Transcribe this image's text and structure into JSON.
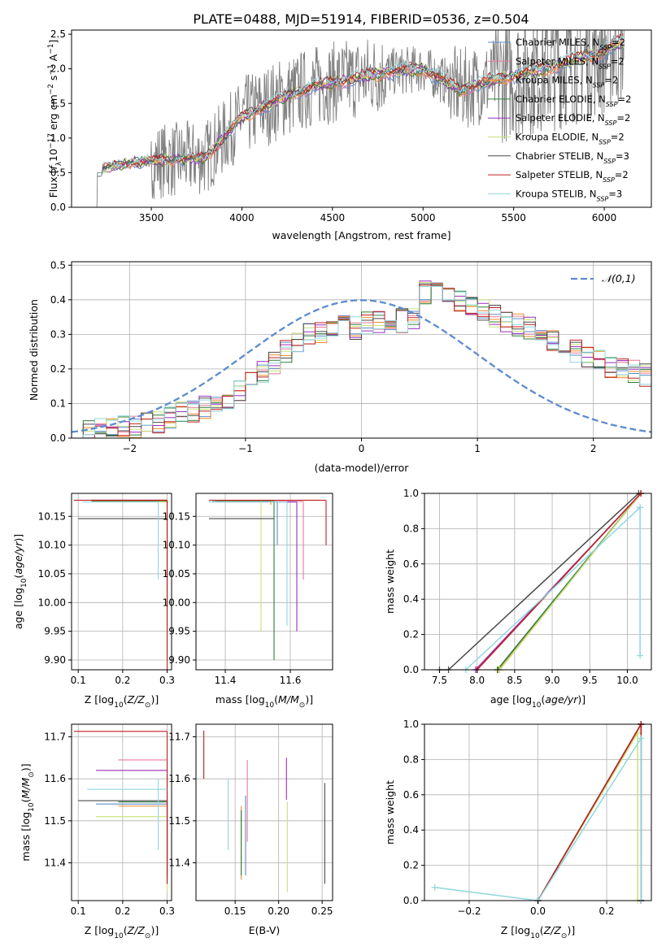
{
  "figure_title": "PLATE=0488, MJD=51914, FIBERID=0536, z=0.504",
  "legend_models": [
    {
      "label": "Chabrier MILES, N_SSP=2",
      "color": "#5b8bc9"
    },
    {
      "label": "Salpeter MILES, N_SSP=2",
      "color": "#e87b96"
    },
    {
      "label": "Kroupa MILES, N_SSP=2",
      "color": "#f08a2a"
    },
    {
      "label": "Chabrier ELODIE, N_SSP=2",
      "color": "#2f7d3a"
    },
    {
      "label": "Salpeter ELODIE, N_SSP=2",
      "color": "#9a2fbf"
    },
    {
      "label": "Kroupa ELODIE, N_SSP=2",
      "color": "#c9e27a"
    },
    {
      "label": "Chabrier STELIB, N_SSP=3",
      "color": "#4a4a4a"
    },
    {
      "label": "Salpeter STELIB, N_SSP=2",
      "color": "#c0201f"
    },
    {
      "label": "Kroupa STELIB, N_SSP=3",
      "color": "#8fd7dd"
    }
  ],
  "chart_data": [
    {
      "id": "spectrum",
      "type": "line",
      "title": "PLATE=0488, MJD=51914, FIBERID=0536, z=0.504",
      "xlabel": "wavelength [Angstrom, rest frame]",
      "ylabel": "Flux [f_λ 10^-17 erg cm^-2 s^-1 A^-1]",
      "xlim": [
        3060,
        6260
      ],
      "ylim": [
        0,
        2.56
      ],
      "xticks": [
        3500,
        4000,
        4500,
        5000,
        5500,
        6000
      ],
      "yticks": [
        0.0,
        0.5,
        1.0,
        1.5,
        2.0,
        2.5
      ],
      "continuum_x": [
        3200,
        3400,
        3600,
        3800,
        4000,
        4200,
        4400,
        4600,
        4800,
        5000,
        5200,
        5400,
        5600,
        5800,
        6000,
        6100
      ],
      "continuum_y": [
        0.55,
        0.65,
        0.68,
        0.72,
        1.3,
        1.55,
        1.75,
        1.85,
        1.95,
        2.0,
        1.7,
        1.85,
        1.95,
        2.1,
        2.25,
        2.4
      ],
      "data_start": 3200,
      "data_end": 6110
    },
    {
      "id": "residuals",
      "type": "line",
      "xlabel": "(data-model)/error",
      "ylabel": "Normed distribution",
      "xlim": [
        -2.5,
        2.5
      ],
      "ylim": [
        0,
        0.51
      ],
      "xticks": [
        -2,
        -1,
        0,
        1,
        2
      ],
      "yticks": [
        0.0,
        0.1,
        0.2,
        0.3,
        0.4,
        0.5
      ],
      "reference_label": "𝒩(0,1)",
      "reference_color": "#5b8bd0",
      "bin_width": 0.1,
      "hist_start": -2.5,
      "base_values": [
        0.02,
        0.02,
        0.025,
        0.03,
        0.03,
        0.035,
        0.04,
        0.05,
        0.06,
        0.07,
        0.08,
        0.09,
        0.1,
        0.12,
        0.14,
        0.16,
        0.19,
        0.22,
        0.25,
        0.28,
        0.3,
        0.31,
        0.32,
        0.33,
        0.32,
        0.33,
        0.34,
        0.33,
        0.34,
        0.35,
        0.42,
        0.44,
        0.42,
        0.4,
        0.38,
        0.37,
        0.35,
        0.34,
        0.33,
        0.32,
        0.3,
        0.28,
        0.26,
        0.25,
        0.24,
        0.22,
        0.2,
        0.2,
        0.19,
        0.18,
        0.18,
        0.17,
        0.16,
        0.15,
        0.13,
        0.12,
        0.1,
        0.09,
        0.08,
        0.07,
        0.06
      ]
    },
    {
      "id": "age_vs_Z",
      "type": "scatter",
      "xlabel": "Z [log10(Z/Z_sun)]",
      "ylabel": "age [log10(age/yr)]",
      "xlim": [
        0.085,
        0.31
      ],
      "ylim": [
        9.883,
        10.19
      ],
      "xticks": [
        0.1,
        0.2,
        0.3
      ],
      "yticks": [
        9.9,
        9.95,
        10.0,
        10.05,
        10.1,
        10.15
      ],
      "points": [
        {
          "model": 0,
          "x": 0.3,
          "y": 10.178,
          "xerr": [
            0.125,
            0.3
          ],
          "yerr": [
            10.16,
            10.178
          ]
        },
        {
          "model": 1,
          "x": 0.3,
          "y": 10.178,
          "xerr": [
            0.14,
            0.3
          ],
          "yerr": [
            10.17,
            10.178
          ]
        },
        {
          "model": 2,
          "x": 0.3,
          "y": 10.177,
          "xerr": [
            0.13,
            0.3
          ],
          "yerr": [
            10.17,
            10.177
          ]
        },
        {
          "model": 3,
          "x": 0.3,
          "y": 10.176,
          "xerr": [
            0.13,
            0.3
          ],
          "yerr": [
            9.9,
            10.176
          ]
        },
        {
          "model": 4,
          "x": 0.3,
          "y": 10.178,
          "xerr": [
            0.13,
            0.3
          ],
          "yerr": [
            10.17,
            10.178
          ]
        },
        {
          "model": 5,
          "x": 0.3,
          "y": 10.175,
          "xerr": [
            0.15,
            0.3
          ],
          "yerr": [
            9.95,
            10.175
          ]
        },
        {
          "model": 6,
          "x": 0.3,
          "y": 10.146,
          "xerr": [
            0.1,
            0.3
          ],
          "yerr": [
            9.99,
            10.146
          ]
        },
        {
          "model": 7,
          "x": 0.3,
          "y": 10.178,
          "xerr": [
            0.09,
            0.3
          ],
          "yerr": [
            9.88,
            10.178
          ]
        },
        {
          "model": 8,
          "x": 0.28,
          "y": 10.175,
          "xerr": [
            0.11,
            0.28
          ],
          "yerr": [
            10.04,
            10.175
          ]
        }
      ]
    },
    {
      "id": "age_vs_mass",
      "type": "scatter",
      "xlabel": "mass [log10(M/M_sun)]",
      "ylabel": "",
      "xlim": [
        11.31,
        11.73
      ],
      "ylim": [
        9.883,
        10.19
      ],
      "xticks": [
        11.4,
        11.6
      ],
      "yticks": [
        9.9,
        9.95,
        10.0,
        10.05,
        10.1,
        10.15
      ],
      "points": [
        {
          "model": 0,
          "x": 11.56,
          "y": 10.176,
          "xerr": [
            11.36,
            11.56
          ],
          "yerr": [
            10.1,
            10.176
          ]
        },
        {
          "model": 1,
          "x": 11.64,
          "y": 10.176,
          "xerr": [
            11.38,
            11.64
          ],
          "yerr": [
            10.04,
            10.176
          ]
        },
        {
          "model": 2,
          "x": 11.54,
          "y": 10.176,
          "xerr": [
            11.38,
            11.54
          ],
          "yerr": [
            10.17,
            10.176
          ]
        },
        {
          "model": 3,
          "x": 11.55,
          "y": 10.176,
          "xerr": [
            11.37,
            11.55
          ],
          "yerr": [
            9.9,
            10.176
          ]
        },
        {
          "model": 4,
          "x": 11.62,
          "y": 10.175,
          "xerr": [
            11.36,
            11.62
          ],
          "yerr": [
            9.95,
            10.175
          ]
        },
        {
          "model": 5,
          "x": 11.51,
          "y": 10.175,
          "xerr": [
            11.36,
            11.51
          ],
          "yerr": [
            9.95,
            10.175
          ]
        },
        {
          "model": 6,
          "x": 11.55,
          "y": 10.146,
          "xerr": [
            11.35,
            11.55
          ],
          "yerr": [
            10.146,
            10.146
          ]
        },
        {
          "model": 7,
          "x": 11.71,
          "y": 10.178,
          "xerr": [
            11.35,
            11.71
          ],
          "yerr": [
            10.1,
            10.178
          ]
        },
        {
          "model": 8,
          "x": 11.59,
          "y": 10.175,
          "xerr": [
            11.35,
            11.59
          ],
          "yerr": [
            9.96,
            10.175
          ]
        }
      ]
    },
    {
      "id": "mass_weight_vs_age",
      "type": "line",
      "xlabel": "age [log10(age/yr)]",
      "ylabel": "mass weight",
      "xlim": [
        7.3,
        10.32
      ],
      "ylim": [
        0,
        1.0
      ],
      "xticks": [
        7.5,
        8.0,
        8.5,
        9.0,
        9.5,
        10.0
      ],
      "yticks": [
        0.0,
        0.2,
        0.4,
        0.6,
        0.8,
        1.0
      ],
      "series": [
        {
          "model": 0,
          "x": [
            8.27,
            10.18
          ],
          "y": [
            0.0,
            1.0
          ]
        },
        {
          "model": 1,
          "x": [
            8.3,
            10.18
          ],
          "y": [
            0.0,
            1.0
          ]
        },
        {
          "model": 2,
          "x": [
            8.28,
            10.18
          ],
          "y": [
            0.0,
            1.0
          ]
        },
        {
          "model": 3,
          "x": [
            8.27,
            10.18
          ],
          "y": [
            0.0,
            1.0
          ]
        },
        {
          "model": 4,
          "x": [
            7.98,
            10.18
          ],
          "y": [
            0.0,
            1.0
          ]
        },
        {
          "model": 5,
          "x": [
            8.3,
            10.18
          ],
          "y": [
            0.0,
            1.0
          ]
        },
        {
          "model": 6,
          "x": [
            7.5,
            7.62,
            10.15
          ],
          "y": [
            0.0,
            0.0,
            1.0
          ]
        },
        {
          "model": 7,
          "x": [
            8.0,
            10.18
          ],
          "y": [
            0.0,
            1.0
          ]
        },
        {
          "model": 8,
          "x": [
            7.85,
            10.17,
            10.17,
            10.17
          ],
          "y": [
            0.0,
            0.92,
            0.08,
            0.92
          ]
        }
      ]
    },
    {
      "id": "mass_vs_Z",
      "type": "scatter",
      "xlabel": "Z [log10(Z/Z_sun)]",
      "ylabel": "mass [log10(M/M_sun)]",
      "xlim": [
        0.085,
        0.31
      ],
      "ylim": [
        11.31,
        11.73
      ],
      "xticks": [
        0.1,
        0.2,
        0.3
      ],
      "yticks": [
        11.4,
        11.5,
        11.6,
        11.7
      ],
      "points": [
        {
          "model": 0,
          "x": 0.3,
          "y": 11.54,
          "xerr": [
            0.14,
            0.3
          ],
          "yerr": [
            11.35,
            11.56
          ]
        },
        {
          "model": 1,
          "x": 0.3,
          "y": 11.645,
          "xerr": [
            0.19,
            0.3
          ],
          "yerr": [
            11.38,
            11.645
          ]
        },
        {
          "model": 2,
          "x": 0.3,
          "y": 11.535,
          "xerr": [
            0.19,
            0.3
          ],
          "yerr": [
            11.37,
            11.535
          ]
        },
        {
          "model": 3,
          "x": 0.3,
          "y": 11.545,
          "xerr": [
            0.19,
            0.3
          ],
          "yerr": [
            11.37,
            11.545
          ]
        },
        {
          "model": 4,
          "x": 0.3,
          "y": 11.62,
          "xerr": [
            0.14,
            0.3
          ],
          "yerr": [
            11.36,
            11.62
          ]
        },
        {
          "model": 5,
          "x": 0.3,
          "y": 11.51,
          "xerr": [
            0.14,
            0.3
          ],
          "yerr": [
            11.33,
            11.51
          ]
        },
        {
          "model": 6,
          "x": 0.3,
          "y": 11.548,
          "xerr": [
            0.1,
            0.3
          ],
          "yerr": [
            11.35,
            11.548
          ]
        },
        {
          "model": 7,
          "x": 0.3,
          "y": 11.713,
          "xerr": [
            0.09,
            0.3
          ],
          "yerr": [
            11.35,
            11.713
          ]
        },
        {
          "model": 8,
          "x": 0.28,
          "y": 11.575,
          "xerr": [
            0.12,
            0.3
          ],
          "yerr": [
            11.43,
            11.6
          ]
        }
      ]
    },
    {
      "id": "mass_vs_EBV",
      "type": "scatter",
      "xlabel": "E(B-V)",
      "ylabel": "",
      "xlim": [
        0.105,
        0.262
      ],
      "ylim": [
        11.31,
        11.73
      ],
      "xticks": [
        0.15,
        0.2,
        0.25
      ],
      "yticks": [
        11.4,
        11.5,
        11.6,
        11.7
      ],
      "points": [
        {
          "model": 0,
          "x": 0.162,
          "yerr": [
            11.37,
            11.56
          ]
        },
        {
          "model": 1,
          "x": 0.164,
          "yerr": [
            11.45,
            11.645
          ]
        },
        {
          "model": 2,
          "x": 0.157,
          "yerr": [
            11.36,
            11.535
          ]
        },
        {
          "model": 3,
          "x": 0.157,
          "yerr": [
            11.37,
            11.525
          ]
        },
        {
          "model": 4,
          "x": 0.209,
          "yerr": [
            11.55,
            11.65
          ]
        },
        {
          "model": 5,
          "x": 0.21,
          "yerr": [
            11.33,
            11.545
          ]
        },
        {
          "model": 6,
          "x": 0.253,
          "yerr": [
            11.35,
            11.59
          ]
        },
        {
          "model": 7,
          "x": 0.114,
          "yerr": [
            11.6,
            11.715
          ]
        },
        {
          "model": 8,
          "x": 0.142,
          "yerr": [
            11.43,
            11.6
          ]
        }
      ]
    },
    {
      "id": "mass_weight_vs_Z",
      "type": "line",
      "xlabel": "Z [log10(Z/Z_sun)]",
      "ylabel": "mass weight",
      "xlim": [
        -0.33,
        0.33
      ],
      "ylim": [
        0,
        1.0
      ],
      "xticks": [
        -0.2,
        0.0,
        0.2
      ],
      "yticks": [
        0.0,
        0.2,
        0.4,
        0.6,
        0.8,
        1.0
      ],
      "series": [
        {
          "model": 0,
          "x": [
            0.0,
            0.3,
            0.3
          ],
          "y": [
            0.0,
            1.0,
            0.0
          ]
        },
        {
          "model": 1,
          "x": [
            0.0,
            0.3,
            0.3
          ],
          "y": [
            0.0,
            1.0,
            0.0
          ]
        },
        {
          "model": 2,
          "x": [
            0.0,
            0.3,
            0.3
          ],
          "y": [
            0.0,
            1.0,
            0.0
          ]
        },
        {
          "model": 3,
          "x": [
            0.0,
            0.3,
            0.3
          ],
          "y": [
            0.0,
            1.0,
            0.0
          ]
        },
        {
          "model": 4,
          "x": [
            0.0,
            0.3,
            0.3
          ],
          "y": [
            0.0,
            1.0,
            0.0
          ]
        },
        {
          "model": 5,
          "x": [
            0.0,
            0.29,
            0.29
          ],
          "y": [
            0.0,
            0.95,
            0.0
          ]
        },
        {
          "model": 6,
          "x": [
            0.0,
            0.3,
            0.3
          ],
          "y": [
            0.0,
            1.0,
            0.0
          ]
        },
        {
          "model": 7,
          "x": [
            0.0,
            0.3,
            0.3
          ],
          "y": [
            0.0,
            1.0,
            0.0
          ]
        },
        {
          "model": 8,
          "x": [
            -0.3,
            0.0,
            0.3,
            0.3
          ],
          "y": [
            0.075,
            0.0,
            0.92,
            0.0
          ]
        }
      ]
    }
  ]
}
